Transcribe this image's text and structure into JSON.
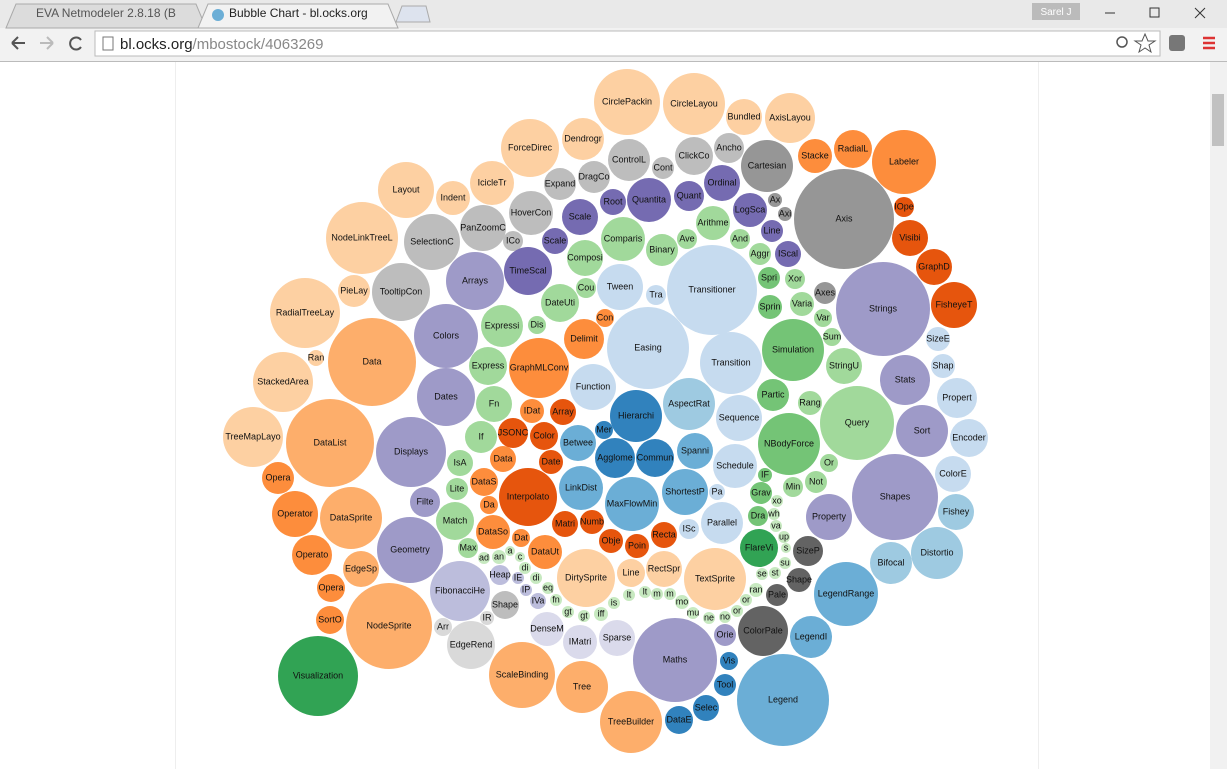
{
  "browser": {
    "tabs": [
      "EVA Netmodeler 2.8.18 (B",
      "Bubble Chart - bl.ocks.org"
    ],
    "user": "Sarel J",
    "url_host": "bl.ocks.org",
    "url_path": "/mbostock/4063269"
  },
  "chart_data": {
    "type": "bubble",
    "labels": [
      "CirclePackin",
      "CircleLayou",
      "Bundled",
      "AxisLayou",
      "Dendrogr",
      "ForceDirec",
      "ControlL",
      "ClickCo",
      "Ancho",
      "Cartesian",
      "Stacke",
      "RadialL",
      "Labeler",
      "Axis",
      "Layout",
      "Indent",
      "IcicleTr",
      "Expand",
      "DragCo",
      "Cont",
      "Ordinal",
      "Root",
      "Quantita",
      "Quant",
      "Ax",
      "Axi",
      "LogSca",
      "IOpe",
      "NodeLinkTreeL",
      "SelectionC",
      "PanZoomC",
      "HoverCon",
      "Scale",
      "Arithme",
      "Line",
      "Visibi",
      "ICo",
      "Scale",
      "Comparis",
      "Ave",
      "And",
      "Binary",
      "Composi",
      "Aggr",
      "IScal",
      "GraphD",
      "Arrays",
      "TimeScal",
      "Transitioner",
      "Spri",
      "Xor",
      "PieLay",
      "TooltipCon",
      "Cou",
      "Tween",
      "Tra",
      "Axes",
      "Strings",
      "DateUti",
      "Varia",
      "Sprin",
      "FisheyeT",
      "RadialTreeLay",
      "Expressi",
      "Dis",
      "Con",
      "Var",
      "Colors",
      "Delimit",
      "Easing",
      "Sum",
      "Simulation",
      "SizeE",
      "Data",
      "Ran",
      "GraphMLConv",
      "Express",
      "Transition",
      "StringU",
      "Shap",
      "Function",
      "Stats",
      "StackedArea",
      "Dates",
      "Partic",
      "Fn",
      "AspectRat",
      "Rang",
      "Propert",
      "IDat",
      "Array",
      "Hierarchi",
      "Sequence",
      "Query",
      "Sort",
      "TreeMapLayo",
      "DataList",
      "JSONC",
      "Color",
      "Mer",
      "Encoder",
      "If",
      "Betwee",
      "NBodyForce",
      "Displays",
      "Agglome",
      "Commun",
      "Spanni",
      "Data",
      "Date",
      "Schedule",
      "Or",
      "IsA",
      "IF",
      "ColorE",
      "Opera",
      "DataS",
      "Lite",
      "LinkDist",
      "Interpolato",
      "ShortestP",
      "Pa",
      "Grav",
      "Min",
      "Not",
      "Shapes",
      "Filte",
      "MaxFlowMin",
      "Da",
      "xo",
      "Fishey",
      "Operator",
      "DataSprite",
      "Match",
      "Property",
      "DataSo",
      "Matri",
      "Numb",
      "Dra",
      "wh",
      "Parallel",
      "ISc",
      "Dat",
      "va",
      "Obje",
      "Poin",
      "Recta",
      "up",
      "Distortio",
      "Geometry",
      "Max",
      "s",
      "FlareVi",
      "SizeP",
      "DataUt",
      "ad",
      "an",
      "a",
      "c",
      "Operato",
      "Bifocal",
      "di",
      "su",
      "EdgeSp",
      "RectSpr",
      "Line",
      "Heap",
      "IE",
      "di",
      "TextSprite",
      "se",
      "st",
      "DirtySprite",
      "Shape",
      "Opera",
      "IP",
      "eq",
      "ran",
      "FibonacciHe",
      "lt",
      "lt",
      "m",
      "m",
      "Pale",
      "LegendRange",
      "IVa",
      "fn",
      "mo",
      "or",
      "Shape",
      "is",
      "or",
      "gt",
      "gt",
      "iff",
      "mu",
      "ne",
      "no",
      "SortO",
      "NodeSprite",
      "IR",
      "DenseM",
      "Arr",
      "ColorPale",
      "Orie",
      "LegendI",
      "EdgeRend",
      "IMatri",
      "Sparse",
      "Maths",
      "Vis",
      "Visualization",
      "ScaleBinding",
      "Tree",
      "Tool",
      "Legend",
      "Selec",
      "TreeBuilder",
      "DataE"
    ],
    "values": [
      1089,
      961,
      324,
      625,
      441,
      841,
      441,
      361,
      225,
      676,
      289,
      361,
      1024,
      2500,
      784,
      289,
      484,
      256,
      256,
      121,
      324,
      169,
      484,
      225,
      49,
      49,
      289,
      100,
      1296,
      784,
      529,
      484,
      324,
      289,
      121,
      324,
      100,
      169,
      484,
      100,
      100,
      256,
      324,
      121,
      169,
      324,
      841,
      576,
      2025,
      121,
      100,
      256,
      841,
      100,
      529,
      100,
      121,
      2209,
      361,
      144,
      144,
      529,
      1225,
      441,
      81,
      81,
      81,
      1024,
      400,
      1681,
      81,
      961,
      144,
      1936,
      64,
      900,
      361,
      961,
      324,
      144,
      529,
      625,
      900,
      841,
      256,
      324,
      676,
      144,
      400,
      144,
      169,
      676,
      529,
      1369,
      676,
      900,
      1936,
      225,
      196,
      81,
      361,
      256,
      324,
      961,
      1225,
      400,
      361,
      324,
      169,
      144,
      484,
      81,
      169,
      49,
      324,
      256,
      196,
      121,
      484,
      841,
      529,
      64,
      121,
      100,
      121,
      1849,
      225,
      729,
      81,
      36,
      324,
      529,
      961,
      361,
      529,
      289,
      169,
      144,
      100,
      36,
      441,
      100,
      81,
      36,
      144,
      144,
      169,
      36,
      676,
      1089,
      100,
      25,
      361,
      225,
      289,
      36,
      49,
      25,
      25,
      400,
      441,
      36,
      36,
      324,
      324,
      196,
      100,
      36,
      36,
      961,
      36,
      36,
      841,
      144,
      196,
      36,
      36,
      49,
      900,
      36,
      36,
      36,
      36,
      121,
      1024,
      64,
      36,
      49,
      36,
      196,
      36,
      36,
      36,
      36,
      49,
      36,
      36,
      36,
      196,
      1849,
      49,
      289,
      81,
      625,
      121,
      441,
      576,
      289,
      324,
      1764,
      81,
      1600,
      1089,
      676,
      121,
      2116,
      169,
      961,
      196
    ],
    "colors": [
      "#fdd0a2",
      "#fdd0a2",
      "#fdd0a2",
      "#fdd0a2",
      "#fdd0a2",
      "#fdd0a2",
      "#bdbdbd",
      "#bdbdbd",
      "#bdbdbd",
      "#969696",
      "#fd8d3c",
      "#fd8d3c",
      "#fd8d3c",
      "#969696",
      "#fdd0a2",
      "#fdd0a2",
      "#fdd0a2",
      "#bdbdbd",
      "#bdbdbd",
      "#bdbdbd",
      "#756bb1",
      "#756bb1",
      "#756bb1",
      "#756bb1",
      "#969696",
      "#969696",
      "#756bb1",
      "#e6550d",
      "#fdd0a2",
      "#bdbdbd",
      "#bdbdbd",
      "#bdbdbd",
      "#756bb1",
      "#a1d99b",
      "#756bb1",
      "#e6550d",
      "#bdbdbd",
      "#756bb1",
      "#a1d99b",
      "#a1d99b",
      "#a1d99b",
      "#a1d99b",
      "#a1d99b",
      "#a1d99b",
      "#756bb1",
      "#e6550d",
      "#9e9ac8",
      "#756bb1",
      "#c6dbef",
      "#74c476",
      "#a1d99b",
      "#fdd0a2",
      "#bdbdbd",
      "#a1d99b",
      "#c6dbef",
      "#c6dbef",
      "#969696",
      "#9e9ac8",
      "#a1d99b",
      "#a1d99b",
      "#74c476",
      "#e6550d",
      "#fdd0a2",
      "#a1d99b",
      "#a1d99b",
      "#fd8d3c",
      "#a1d99b",
      "#9e9ac8",
      "#fd8d3c",
      "#c6dbef",
      "#a1d99b",
      "#74c476",
      "#c6dbef",
      "#fdae6b",
      "#fdd0a2",
      "#fd8d3c",
      "#a1d99b",
      "#c6dbef",
      "#a1d99b",
      "#c6dbef",
      "#c6dbef",
      "#9e9ac8",
      "#fdd0a2",
      "#9e9ac8",
      "#74c476",
      "#a1d99b",
      "#9ecae1",
      "#a1d99b",
      "#c6dbef",
      "#fd8d3c",
      "#e6550d",
      "#3182bd",
      "#c6dbef",
      "#a1d99b",
      "#9e9ac8",
      "#fdd0a2",
      "#fdae6b",
      "#e6550d",
      "#e6550d",
      "#3182bd",
      "#c6dbef",
      "#a1d99b",
      "#6baed6",
      "#74c476",
      "#9e9ac8",
      "#3182bd",
      "#3182bd",
      "#6baed6",
      "#fd8d3c",
      "#e6550d",
      "#c6dbef",
      "#a1d99b",
      "#a1d99b",
      "#74c476",
      "#c6dbef",
      "#fd8d3c",
      "#fd8d3c",
      "#a1d99b",
      "#6baed6",
      "#e6550d",
      "#6baed6",
      "#c6dbef",
      "#74c476",
      "#a1d99b",
      "#a1d99b",
      "#9e9ac8",
      "#9e9ac8",
      "#6baed6",
      "#fd8d3c",
      "#c7e9c0",
      "#9ecae1",
      "#fd8d3c",
      "#fdae6b",
      "#a1d99b",
      "#9e9ac8",
      "#fd8d3c",
      "#e6550d",
      "#e6550d",
      "#74c476",
      "#c7e9c0",
      "#c6dbef",
      "#c6dbef",
      "#fd8d3c",
      "#c7e9c0",
      "#e6550d",
      "#e6550d",
      "#e6550d",
      "#c7e9c0",
      "#9ecae1",
      "#9e9ac8",
      "#a1d99b",
      "#c7e9c0",
      "#31a354",
      "#636363",
      "#fd8d3c",
      "#c7e9c0",
      "#c7e9c0",
      "#c7e9c0",
      "#c7e9c0",
      "#fd8d3c",
      "#9ecae1",
      "#c7e9c0",
      "#c7e9c0",
      "#fdae6b",
      "#fdd0a2",
      "#fdd0a2",
      "#bcbddc",
      "#bcbddc",
      "#c7e9c0",
      "#fdd0a2",
      "#c7e9c0",
      "#c7e9c0",
      "#fdd0a2",
      "#636363",
      "#fd8d3c",
      "#bcbddc",
      "#c7e9c0",
      "#c7e9c0",
      "#bcbddc",
      "#c7e9c0",
      "#c7e9c0",
      "#c7e9c0",
      "#c7e9c0",
      "#636363",
      "#6baed6",
      "#bcbddc",
      "#c7e9c0",
      "#c7e9c0",
      "#c7e9c0",
      "#bdbdbd",
      "#c7e9c0",
      "#c7e9c0",
      "#c7e9c0",
      "#c7e9c0",
      "#c7e9c0",
      "#c7e9c0",
      "#c7e9c0",
      "#c7e9c0",
      "#fd8d3c",
      "#fdae6b",
      "#d9d9d9",
      "#dadaeb",
      "#d9d9d9",
      "#636363",
      "#9e9ac8",
      "#6baed6",
      "#d9d9d9",
      "#dadaeb",
      "#dadaeb",
      "#9e9ac8",
      "#3182bd",
      "#31a354",
      "#fdae6b",
      "#fdae6b",
      "#3182bd",
      "#6baed6",
      "#3182bd",
      "#fdae6b",
      "#3182bd"
    ]
  }
}
